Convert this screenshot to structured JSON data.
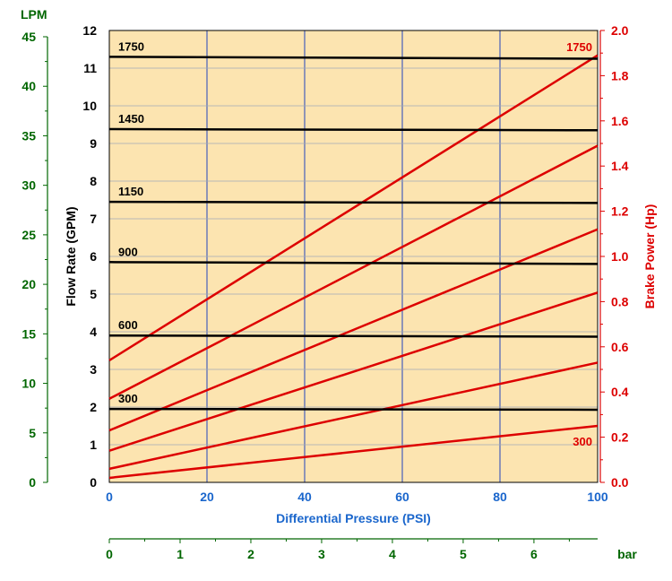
{
  "chart_data": {
    "type": "line",
    "xlabel": "Differential Pressure (PSI)",
    "ylabel_left": "Flow Rate (GPM)",
    "ylabel_right": "Brake Power (Hp)",
    "lpm_label": "LPM",
    "bar_label": "bar",
    "xlim": [
      0,
      100
    ],
    "ylim_gpm": [
      0,
      12
    ],
    "ylim_hp": [
      0,
      2.0
    ],
    "ylim_lpm": [
      0,
      45
    ],
    "xlim_bar": [
      0,
      6.9
    ],
    "x_ticks": [
      "0",
      "20",
      "40",
      "60",
      "80",
      "100"
    ],
    "gpm_ticks": [
      "0",
      "1",
      "2",
      "3",
      "4",
      "5",
      "6",
      "7",
      "8",
      "9",
      "10",
      "11",
      "12"
    ],
    "hp_ticks": [
      "0.0",
      "0.2",
      "0.4",
      "0.6",
      "0.8",
      "1.0",
      "1.2",
      "1.4",
      "1.6",
      "1.8",
      "2.0"
    ],
    "lpm_ticks": [
      "0",
      "5",
      "10",
      "15",
      "20",
      "25",
      "30",
      "35",
      "40",
      "45"
    ],
    "bar_ticks": [
      "0",
      "1",
      "2",
      "3",
      "4",
      "5",
      "6"
    ],
    "grid": true,
    "colors": {
      "background": "#fce4b0",
      "grid": "#2244bb",
      "flow": "#000000",
      "power": "#dd0000",
      "lpm": "#006600",
      "xlabel": "#1a66cc"
    },
    "flow_series": [
      {
        "name": "1750",
        "values": [
          11.3,
          11.25
        ]
      },
      {
        "name": "1450",
        "values": [
          9.38,
          9.35
        ]
      },
      {
        "name": "1150",
        "values": [
          7.45,
          7.42
        ]
      },
      {
        "name": "900",
        "values": [
          5.85,
          5.8
        ]
      },
      {
        "name": "600",
        "values": [
          3.9,
          3.87
        ]
      },
      {
        "name": "300",
        "values": [
          1.95,
          1.93
        ]
      }
    ],
    "power_series": [
      {
        "name": "1750",
        "values": [
          0.54,
          1.89
        ]
      },
      {
        "name": "",
        "values": [
          0.37,
          1.49
        ]
      },
      {
        "name": "",
        "values": [
          0.23,
          1.12
        ]
      },
      {
        "name": "",
        "values": [
          0.14,
          0.84
        ]
      },
      {
        "name": "",
        "values": [
          0.06,
          0.53
        ]
      },
      {
        "name": "300",
        "values": [
          0.02,
          0.25
        ]
      }
    ],
    "x": [
      0,
      100
    ]
  }
}
